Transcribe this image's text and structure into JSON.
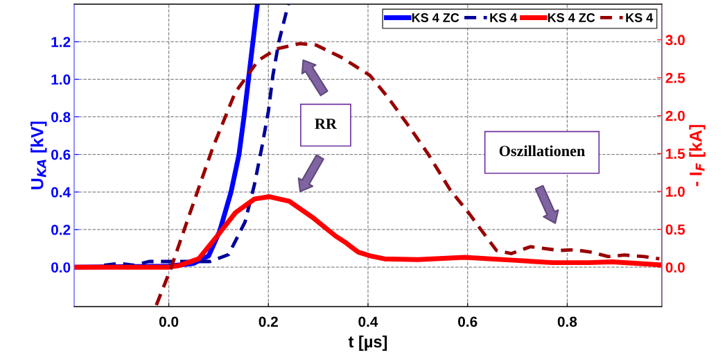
{
  "chart_data": {
    "type": "line",
    "xlabel": "t [µs]",
    "ylabel": "U$_{KA}$ [kV]",
    "y2label": "- I$_{F}$ [kA]",
    "xlim": [
      -0.19,
      0.99
    ],
    "xticks": [
      {
        "value": 0.0,
        "label": "0.0"
      },
      0.2,
      0.4,
      0.6,
      0.8
    ],
    "ylim": [
      -0.21,
      1.4
    ],
    "yticks": [
      {
        "value": 0.0,
        "label": "0.0"
      },
      0.2,
      0.4,
      0.6,
      0.8,
      {
        "value": 1.0,
        "label": "1.0"
      },
      1.2
    ],
    "y2lim": [
      -0.52,
      3.47
    ],
    "y2ticks": [
      {
        "value": 0.0,
        "label": "0.0"
      },
      0.5,
      {
        "value": 1.0,
        "label": "1.0"
      },
      1.5,
      {
        "value": 2.0,
        "label": "2.0"
      },
      2.5,
      {
        "value": 3.0,
        "label": "3.0"
      }
    ],
    "grid": true,
    "legend": "top right",
    "annotations": [
      "RR",
      "Oszillationen"
    ],
    "series": [
      {
        "name": "KS 4 ZC",
        "color": "#0000ff",
        "line_style": "solid",
        "x": [
          -0.19,
          0.0,
          0.05,
          0.08,
          0.102,
          0.125,
          0.141,
          0.151,
          0.16,
          0.169,
          0.178
        ],
        "values": [
          0.0,
          0.005,
          0.02,
          0.06,
          0.19,
          0.4,
          0.6,
          0.8,
          1.0,
          1.2,
          1.4
        ]
      },
      {
        "name": "KS 4",
        "color": "#000099",
        "line_style": "dashed",
        "x": [
          -0.13,
          -0.1,
          -0.07,
          -0.04,
          0.0,
          0.04,
          0.083,
          0.12,
          0.153,
          0.172,
          0.187,
          0.2,
          0.209,
          0.221,
          0.24
        ],
        "values": [
          0.01,
          0.02,
          0.01,
          0.03,
          0.03,
          0.03,
          0.03,
          0.067,
          0.24,
          0.44,
          0.64,
          0.83,
          1.02,
          1.2,
          1.4
        ]
      },
      {
        "name": "KS 4 ZC",
        "color": "#ff0000",
        "line_style": "solid",
        "axis": "y2",
        "x": [
          -0.19,
          0.0,
          0.02,
          0.06,
          0.097,
          0.134,
          0.172,
          0.202,
          0.242,
          0.288,
          0.335,
          0.356,
          0.38,
          0.404,
          0.433,
          0.5,
          0.594,
          0.697,
          0.77,
          0.843,
          0.89,
          0.99
        ],
        "values": [
          0.0,
          0.0,
          0.02,
          0.11,
          0.41,
          0.72,
          0.9,
          0.93,
          0.87,
          0.66,
          0.41,
          0.32,
          0.2,
          0.15,
          0.11,
          0.1,
          0.13,
          0.09,
          0.06,
          0.06,
          0.07,
          0.03
        ]
      },
      {
        "name": "KS 4",
        "color": "#990000",
        "line_style": "dashed",
        "axis": "y2",
        "x": [
          -0.025,
          0.004,
          0.046,
          0.088,
          0.133,
          0.18,
          0.217,
          0.263,
          0.296,
          0.346,
          0.404,
          0.44,
          0.482,
          0.52,
          0.565,
          0.604,
          0.633,
          0.658,
          0.688,
          0.726,
          0.75,
          0.785,
          0.813,
          0.847,
          0.882,
          0.915,
          0.955,
          0.985
        ],
        "values": [
          -0.5,
          -0.02,
          0.78,
          1.57,
          2.3,
          2.73,
          2.88,
          2.95,
          2.93,
          2.77,
          2.53,
          2.24,
          1.86,
          1.5,
          1.02,
          0.7,
          0.44,
          0.22,
          0.18,
          0.27,
          0.25,
          0.22,
          0.23,
          0.2,
          0.14,
          0.16,
          0.14,
          0.11
        ]
      }
    ]
  }
}
